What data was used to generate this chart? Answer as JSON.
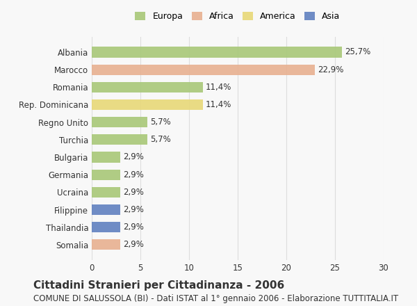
{
  "countries": [
    "Albania",
    "Marocco",
    "Romania",
    "Rep. Dominicana",
    "Regno Unito",
    "Turchia",
    "Bulgaria",
    "Germania",
    "Ucraina",
    "Filippine",
    "Thailandia",
    "Somalia"
  ],
  "values": [
    25.7,
    22.9,
    11.4,
    11.4,
    5.7,
    5.7,
    2.9,
    2.9,
    2.9,
    2.9,
    2.9,
    2.9
  ],
  "labels": [
    "25,7%",
    "22,9%",
    "11,4%",
    "11,4%",
    "5,7%",
    "5,7%",
    "2,9%",
    "2,9%",
    "2,9%",
    "2,9%",
    "2,9%",
    "2,9%"
  ],
  "colors": [
    "#a8c878",
    "#e8b090",
    "#a8c878",
    "#e8d878",
    "#a8c878",
    "#a8c878",
    "#a8c878",
    "#a8c878",
    "#a8c878",
    "#6080c0",
    "#6080c0",
    "#e8b090"
  ],
  "continent": [
    "Europa",
    "Africa",
    "Europa",
    "America",
    "Europa",
    "Europa",
    "Europa",
    "Europa",
    "Europa",
    "Asia",
    "Asia",
    "Africa"
  ],
  "legend_labels": [
    "Europa",
    "Africa",
    "America",
    "Asia"
  ],
  "legend_colors": [
    "#a8c878",
    "#e8b090",
    "#e8d878",
    "#6080c0"
  ],
  "xlim": [
    0,
    30
  ],
  "xticks": [
    0,
    5,
    10,
    15,
    20,
    25,
    30
  ],
  "title": "Cittadini Stranieri per Cittadinanza - 2006",
  "subtitle": "COMUNE DI SALUSSOLA (BI) - Dati ISTAT al 1° gennaio 2006 - Elaborazione TUTTITALIA.IT",
  "bar_height": 0.6,
  "background_color": "#f8f8f8",
  "grid_color": "#dddddd",
  "text_color": "#333333",
  "title_fontsize": 11,
  "subtitle_fontsize": 8.5,
  "label_fontsize": 8.5,
  "tick_fontsize": 8.5,
  "legend_fontsize": 9
}
